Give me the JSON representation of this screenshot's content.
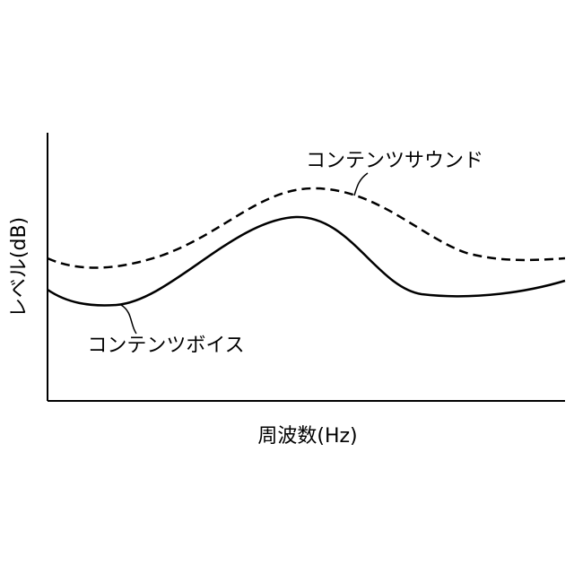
{
  "y_axis_label": "レベル(dB)",
  "x_axis_label": "周波数(Hz)",
  "curves": [
    {
      "label": "コンテンツサウンド"
    },
    {
      "label": "コンテンツボイス"
    }
  ]
}
